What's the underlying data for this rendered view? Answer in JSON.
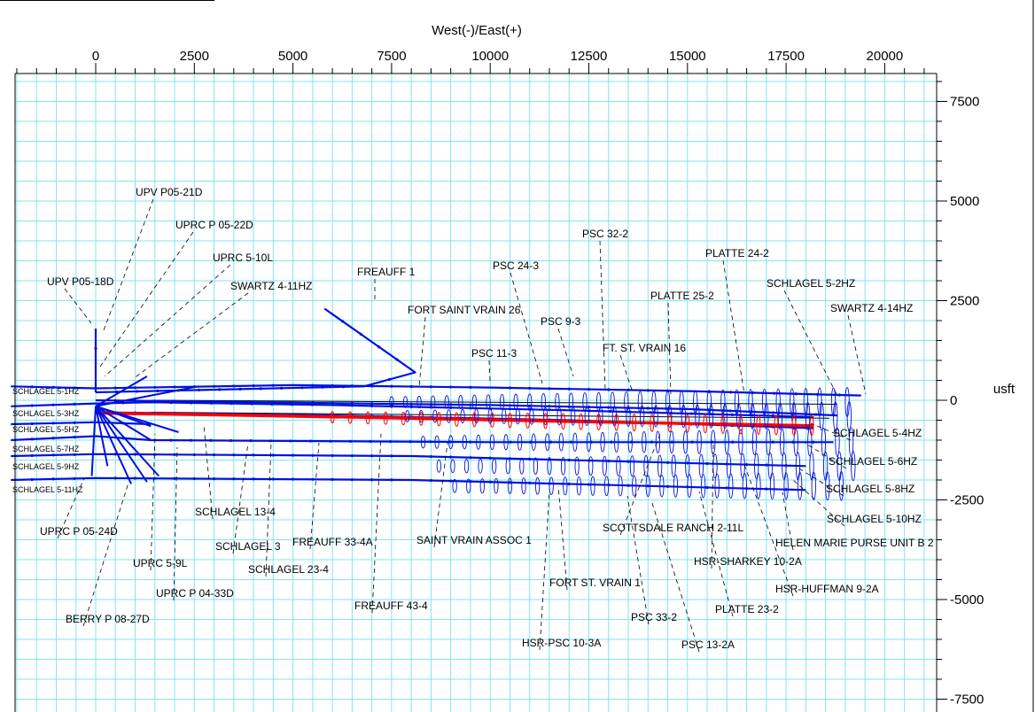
{
  "chart_data": {
    "type": "line",
    "xlabel": "West(-)/East(+)",
    "ylabel": "usft",
    "xlim": [
      -2150,
      21000
    ],
    "ylim": [
      -8000,
      10100
    ],
    "x_ticks": [
      0,
      2500,
      5000,
      7500,
      10000,
      12500,
      15000,
      17500,
      20000
    ],
    "y_ticks": [
      7500,
      5000,
      2500,
      0,
      -2500,
      -5000,
      -7500
    ],
    "colors": {
      "grid": "#7fe6f0",
      "wellbore": "#0010e0",
      "primary": "#ff0000",
      "frame": "#000000",
      "leader": "#000000"
    },
    "series": [
      {
        "name": "SCHLAGEL 5-1HZ",
        "x": [
          -2150,
          0,
          5000,
          10000,
          15000,
          19400
        ],
        "y": [
          350,
          300,
          380,
          320,
          230,
          120
        ]
      },
      {
        "name": "SCHLAGEL 5-3HZ",
        "x": [
          -2150,
          0,
          1400,
          6000,
          12000,
          18200
        ],
        "y": [
          -150,
          -80,
          -50,
          -120,
          -250,
          -420
        ]
      },
      {
        "name": "SCHLAGEL 5-5HZ",
        "x": [
          -2150,
          0,
          1400
        ],
        "y": [
          -600,
          -550,
          -600
        ]
      },
      {
        "name": "SCHLAGEL 5-7HZ",
        "x": [
          -2150,
          0,
          1400,
          10000,
          18700
        ],
        "y": [
          -1000,
          -900,
          -1000,
          -1050,
          -1050
        ]
      },
      {
        "name": "SCHLAGEL 5-9HZ",
        "x": [
          -2150,
          0,
          8000,
          18000
        ],
        "y": [
          -1400,
          -1350,
          -1400,
          -1650
        ]
      },
      {
        "name": "SCHLAGEL 5-11HZ",
        "x": [
          -2150,
          0,
          8000,
          18000
        ],
        "y": [
          -2000,
          -1950,
          -2000,
          -2250
        ]
      },
      {
        "name": "SCHLAGEL 5-2HZ",
        "x": [
          0,
          5000,
          10000,
          15000,
          18800
        ],
        "y": [
          0,
          -60,
          -120,
          -220,
          -380
        ]
      },
      {
        "name": "SCHLAGEL 5-4HZ",
        "x": [
          0,
          6000,
          12000,
          18200
        ],
        "y": [
          -300,
          -380,
          -500,
          -700
        ]
      },
      {
        "name": "red-primary",
        "x": [
          0,
          4000,
          8000,
          12000,
          16000,
          18200
        ],
        "y": [
          -320,
          -380,
          -450,
          -530,
          -600,
          -640
        ]
      },
      {
        "name": "FREAUFF 1",
        "x": [
          5800,
          8100,
          6800,
          0
        ],
        "y": [
          2300,
          700,
          350,
          200
        ]
      },
      {
        "name": "UPV P05-18D",
        "x": [
          0,
          0,
          0
        ],
        "y": [
          1800,
          800,
          200
        ]
      }
    ],
    "labels": [
      "UPV P05-21D",
      "UPRC P 05-22D",
      "UPRC 5-10L",
      "SWARTZ 4-11HZ",
      "UPV P05-18D",
      "FREAUFF 1",
      "FORT SAINT VRAIN 26",
      "PSC 24-3",
      "PSC 9-3",
      "PSC 11-3",
      "PSC 32-2",
      "FT. ST. VRAIN 16",
      "PLATTE 25-2",
      "PLATTE 24-2",
      "SCHLAGEL 5-2HZ",
      "SWARTZ 4-14HZ",
      "SCHLAGEL 5-1HZ",
      "SCHLAGEL 5-3HZ",
      "SCHLAGEL 5-5HZ",
      "SCHLAGEL 5-7HZ",
      "SCHLAGEL 5-9HZ",
      "SCHLAGEL 5-11HZ",
      "SCHLAGEL 5-4HZ",
      "SCHLAGEL 5-6HZ",
      "SCHLAGEL 5-8HZ",
      "SCHLAGEL 5-10HZ",
      "HELEN MARIE PURSE UNIT B 2",
      "HSR-SHARKEY 10-2A",
      "HSR-HUFFMAN 9-2A",
      "PLATTE 23-2",
      "PSC 13-2A",
      "PSC 33-2",
      "HSR-PSC 10-3A",
      "FORT ST. VRAIN 1",
      "SCOTTSDALE RANCH 2-11L",
      "SAINT VRAIN ASSOC 1",
      "FREAUFF 43-4",
      "FREAUFF 33-4A",
      "SCHLAGEL 23-4",
      "SCHLAGEL 3",
      "SCHLAGEL 13-4",
      "UPRC P 04-33D",
      "UPRC 5-9L",
      "BERRY P 08-27D",
      "UPRC P 05-24D"
    ]
  }
}
